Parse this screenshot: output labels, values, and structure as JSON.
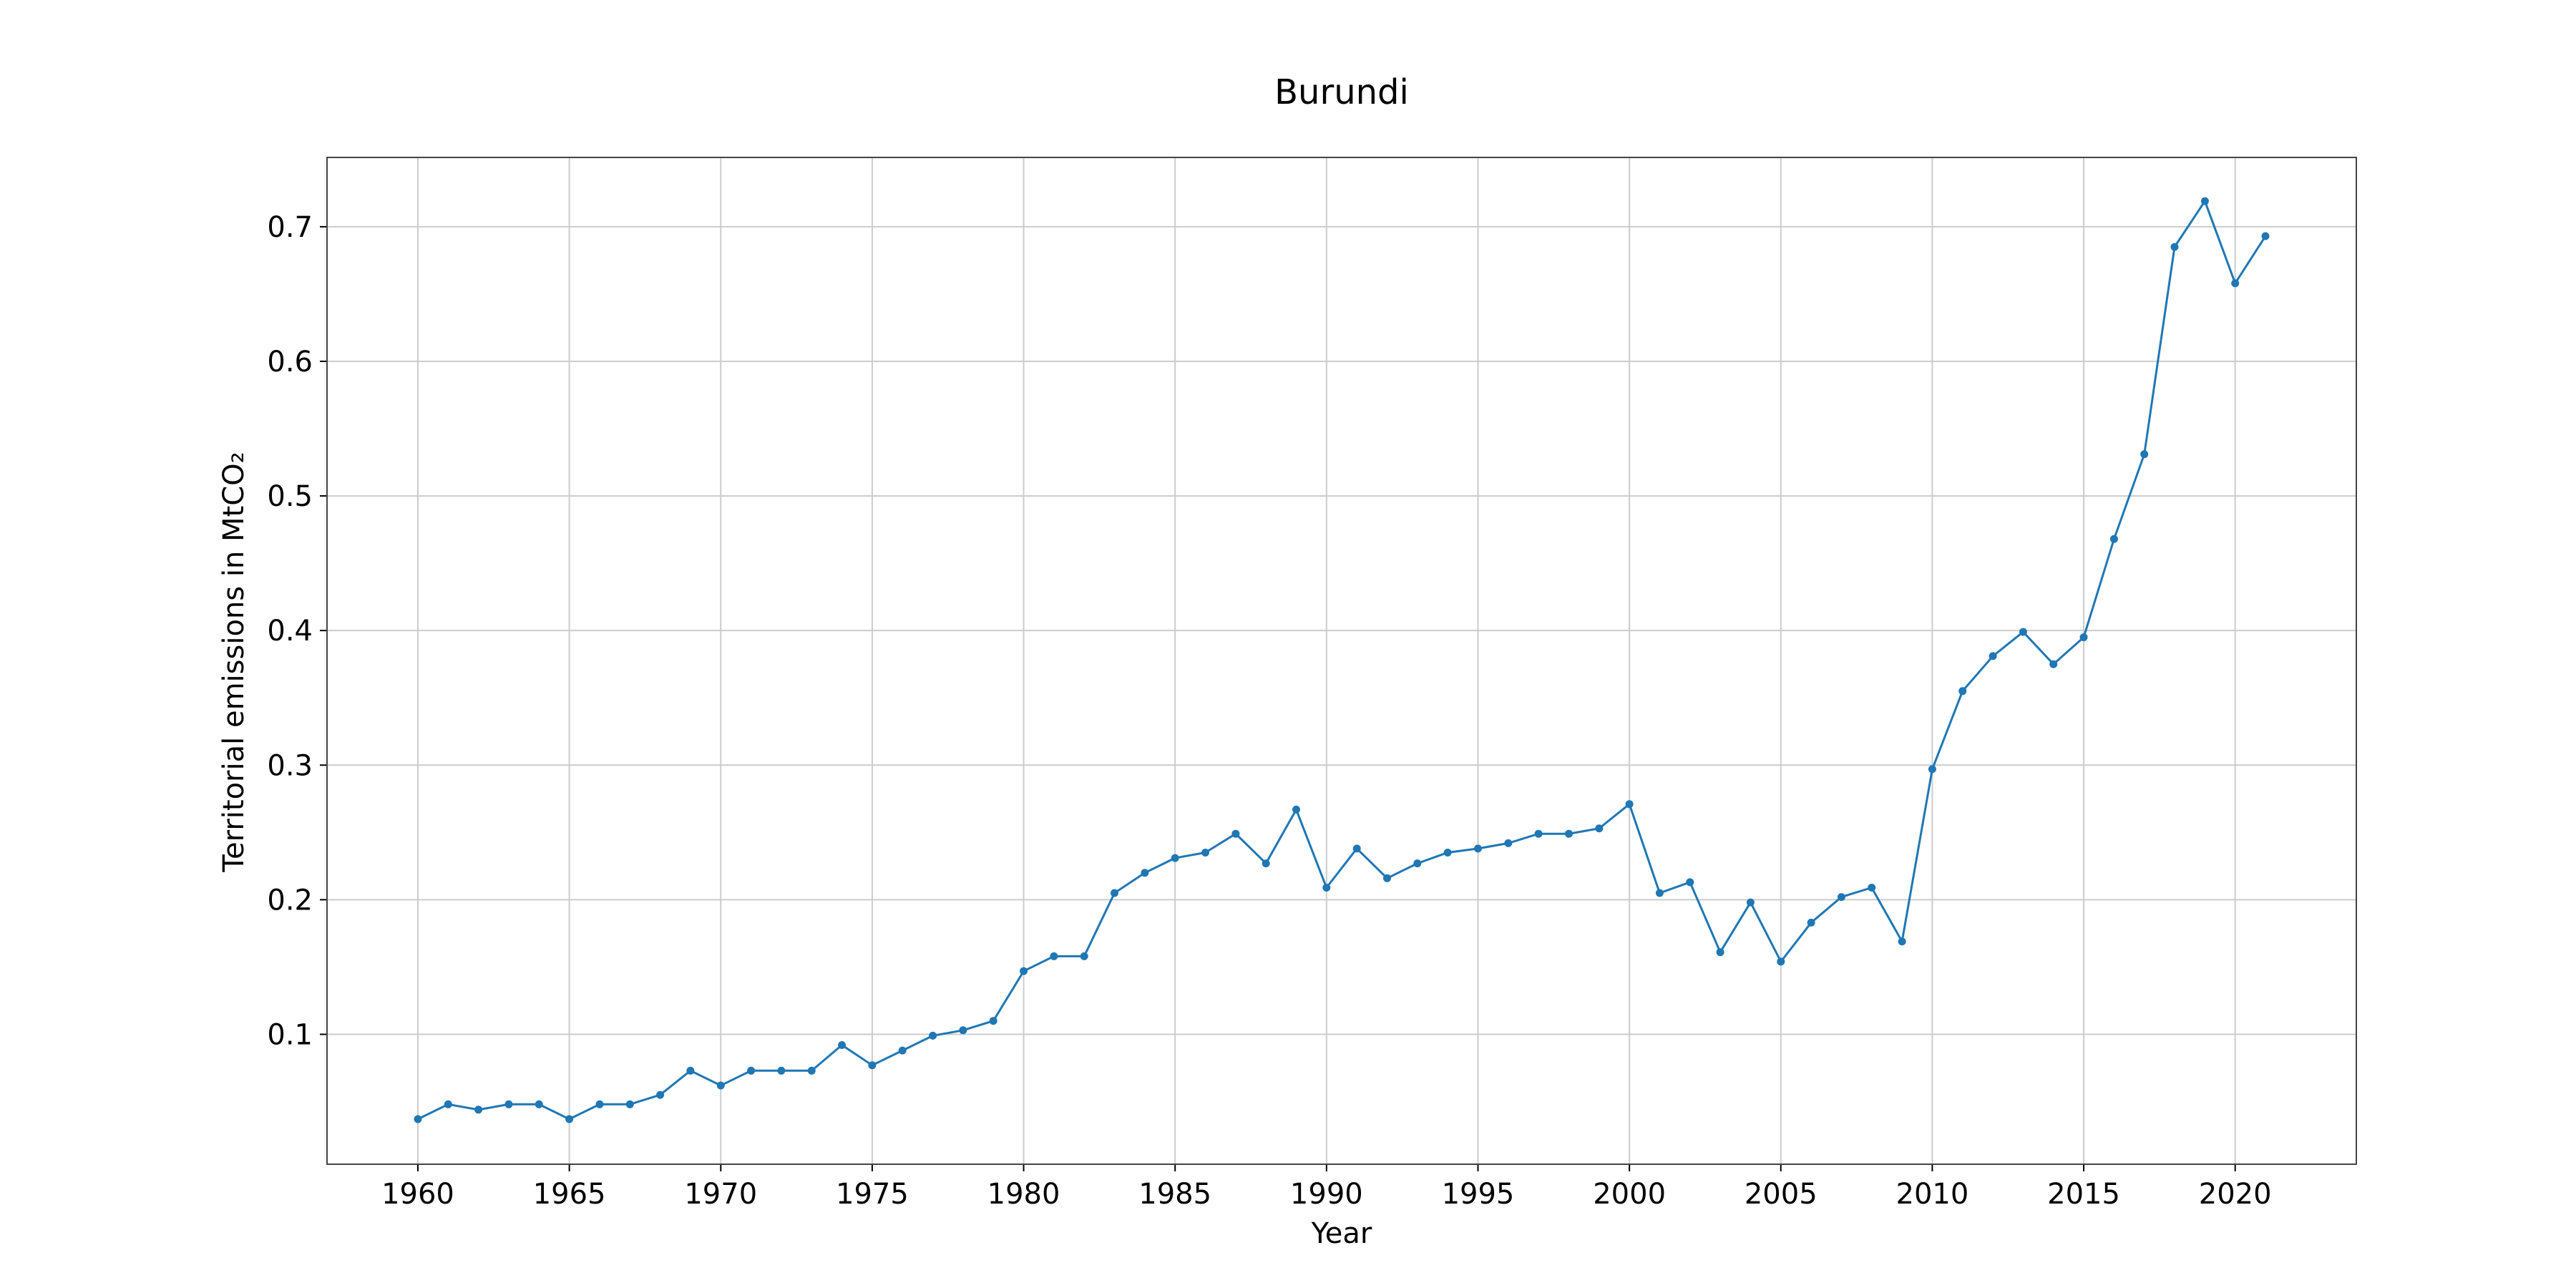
{
  "chart_data": {
    "type": "line",
    "title": "Burundi",
    "xlabel": "Year",
    "ylabel": "Territorial emissions in MtCO₂",
    "xlim": [
      1957,
      2024
    ],
    "ylim": [
      0.0035,
      0.7515
    ],
    "xticks": [
      1960,
      1965,
      1970,
      1975,
      1980,
      1985,
      1990,
      1995,
      2000,
      2005,
      2010,
      2015,
      2020
    ],
    "yticks": [
      0.1,
      0.2,
      0.3,
      0.4,
      0.5,
      0.6,
      0.7
    ],
    "ytick_labels": [
      "0.1",
      "0.2",
      "0.3",
      "0.4",
      "0.5",
      "0.6",
      "0.7"
    ],
    "grid": true,
    "series": [
      {
        "color": "#1f77b4",
        "x": [
          1960,
          1961,
          1962,
          1963,
          1964,
          1965,
          1966,
          1967,
          1968,
          1969,
          1970,
          1971,
          1972,
          1973,
          1974,
          1975,
          1976,
          1977,
          1978,
          1979,
          1980,
          1981,
          1982,
          1983,
          1984,
          1985,
          1986,
          1987,
          1988,
          1989,
          1990,
          1991,
          1992,
          1993,
          1994,
          1995,
          1996,
          1997,
          1998,
          1999,
          2000,
          2001,
          2002,
          2003,
          2004,
          2005,
          2006,
          2007,
          2008,
          2009,
          2010,
          2011,
          2012,
          2013,
          2014,
          2015,
          2016,
          2017,
          2018,
          2019,
          2020,
          2021
        ],
        "y": [
          0.037,
          0.048,
          0.044,
          0.048,
          0.048,
          0.037,
          0.048,
          0.048,
          0.055,
          0.073,
          0.062,
          0.073,
          0.073,
          0.073,
          0.092,
          0.077,
          0.088,
          0.099,
          0.103,
          0.11,
          0.147,
          0.158,
          0.158,
          0.205,
          0.22,
          0.231,
          0.235,
          0.249,
          0.227,
          0.267,
          0.209,
          0.238,
          0.216,
          0.227,
          0.235,
          0.238,
          0.242,
          0.249,
          0.249,
          0.253,
          0.271,
          0.205,
          0.213,
          0.161,
          0.198,
          0.154,
          0.183,
          0.202,
          0.209,
          0.169,
          0.297,
          0.355,
          0.381,
          0.399,
          0.375,
          0.395,
          0.468,
          0.531,
          0.685,
          0.719,
          0.658,
          0.693
        ]
      }
    ]
  }
}
